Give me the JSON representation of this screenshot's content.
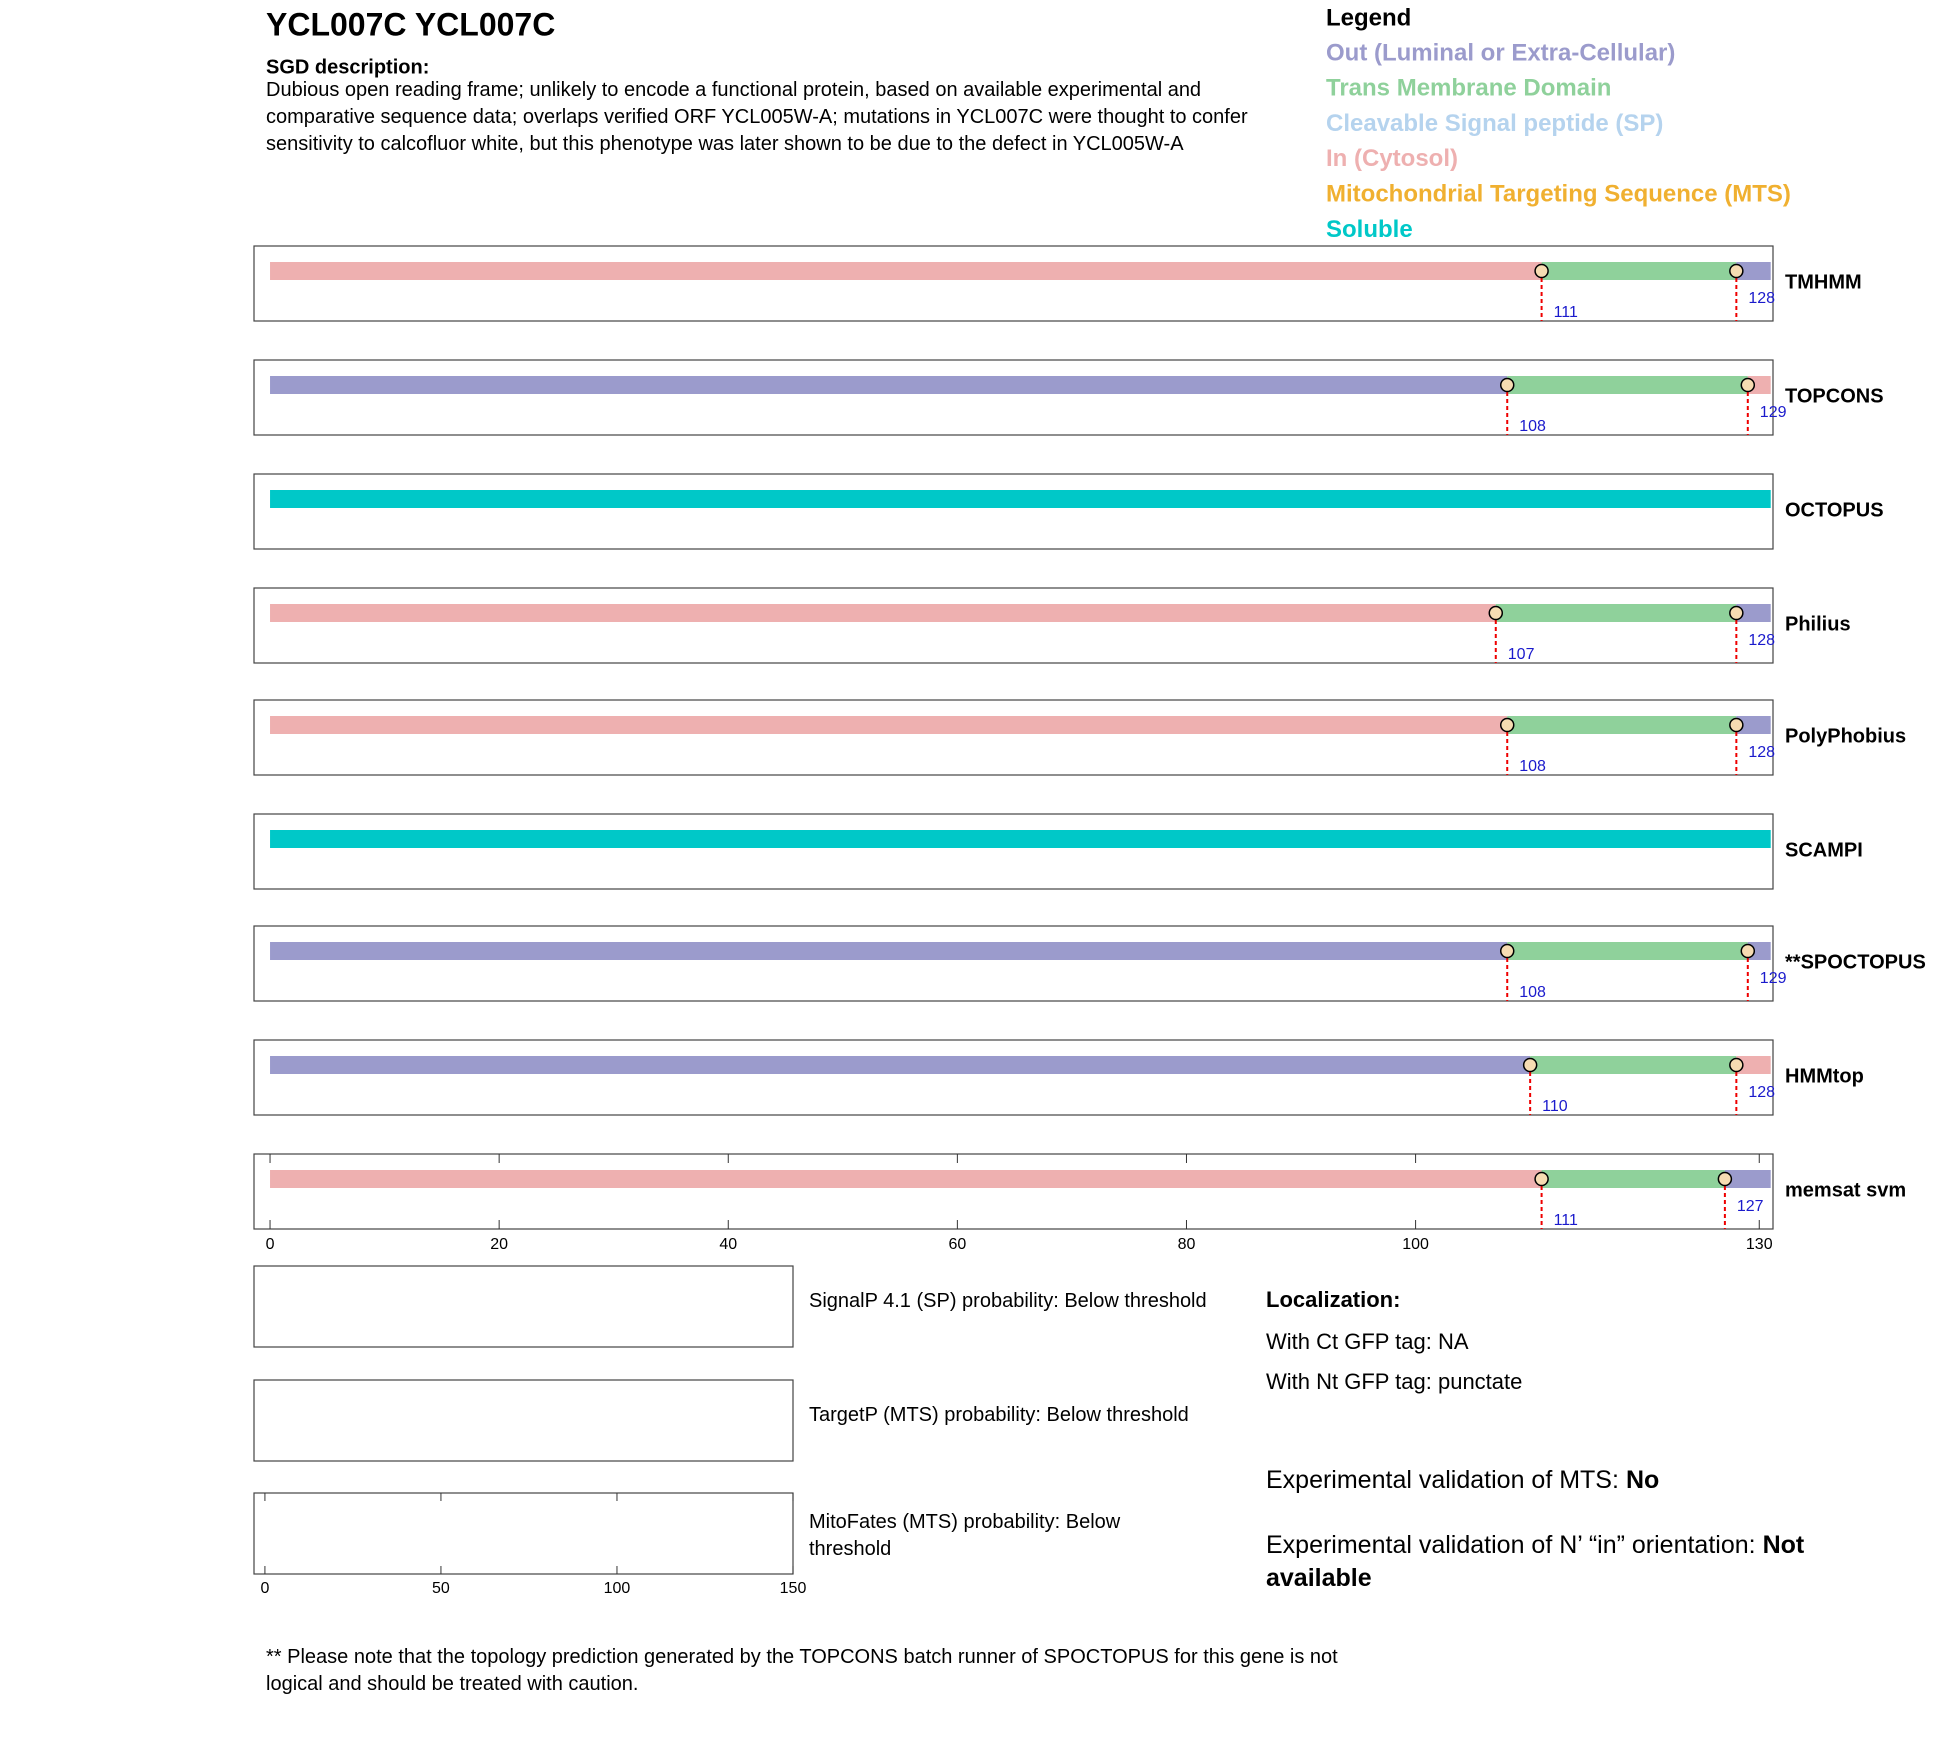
{
  "header": {
    "title": "YCL007C  YCL007C",
    "description_label": "SGD description:",
    "description": "Dubious open reading frame; unlikely to encode a functional protein, based on available experimental and comparative sequence data; overlaps verified ORF YCL005W-A; mutations in YCL007C were thought to confer sensitivity to calcofluor white, but this phenotype was later shown to be due to the defect in YCL005W-A"
  },
  "legend": {
    "title": "Legend",
    "items": [
      {
        "name": "Out (Luminal or Extra-Cellular)",
        "color": "#9b9bcc"
      },
      {
        "name": "Trans Membrane Domain",
        "color": "#8fd19b"
      },
      {
        "name": "Cleavable Signal peptide (SP)",
        "color": "#b5d3ee"
      },
      {
        "name": "In (Cytosol)",
        "color": "#eeb0b0"
      },
      {
        "name": "Mitochondrial Targeting Sequence (MTS)",
        "color": "#f0b030"
      },
      {
        "name": "Soluble",
        "color": "#00c8c8"
      }
    ]
  },
  "topology": {
    "xlim": [
      -1.4,
      131.2
    ],
    "xticks": [
      0,
      20,
      40,
      60,
      80,
      100,
      130
    ],
    "tracks": [
      {
        "name": "TMHMM",
        "segments": [
          {
            "start": 0,
            "end": 111,
            "color": "#eeb0b0"
          },
          {
            "start": 111,
            "end": 128,
            "color": "#8fd19b"
          },
          {
            "start": 128,
            "end": 131,
            "color": "#9b9bcc"
          }
        ],
        "boundaries": [
          111,
          128
        ]
      },
      {
        "name": "TOPCONS",
        "segments": [
          {
            "start": 0,
            "end": 108,
            "color": "#9b9bcc"
          },
          {
            "start": 108,
            "end": 129,
            "color": "#8fd19b"
          },
          {
            "start": 129,
            "end": 131,
            "color": "#eeb0b0"
          }
        ],
        "boundaries": [
          108,
          129
        ]
      },
      {
        "name": "OCTOPUS",
        "segments": [
          {
            "start": 0,
            "end": 131,
            "color": "#00c8c8"
          }
        ],
        "boundaries": []
      },
      {
        "name": "Philius",
        "segments": [
          {
            "start": 0,
            "end": 107,
            "color": "#eeb0b0"
          },
          {
            "start": 107,
            "end": 128,
            "color": "#8fd19b"
          },
          {
            "start": 128,
            "end": 131,
            "color": "#9b9bcc"
          }
        ],
        "boundaries": [
          107,
          128
        ]
      },
      {
        "name": "PolyPhobius",
        "segments": [
          {
            "start": 0,
            "end": 108,
            "color": "#eeb0b0"
          },
          {
            "start": 108,
            "end": 128,
            "color": "#8fd19b"
          },
          {
            "start": 128,
            "end": 131,
            "color": "#9b9bcc"
          }
        ],
        "boundaries": [
          108,
          128
        ]
      },
      {
        "name": "SCAMPI",
        "segments": [
          {
            "start": 0,
            "end": 131,
            "color": "#00c8c8"
          }
        ],
        "boundaries": []
      },
      {
        "name": "**SPOCTOPUS",
        "segments": [
          {
            "start": 0,
            "end": 108,
            "color": "#9b9bcc"
          },
          {
            "start": 108,
            "end": 129,
            "color": "#8fd19b"
          },
          {
            "start": 129,
            "end": 131,
            "color": "#9b9bcc"
          }
        ],
        "boundaries": [
          108,
          129
        ]
      },
      {
        "name": "HMMtop",
        "segments": [
          {
            "start": 0,
            "end": 110,
            "color": "#9b9bcc"
          },
          {
            "start": 110,
            "end": 128,
            "color": "#8fd19b"
          },
          {
            "start": 128,
            "end": 131,
            "color": "#eeb0b0"
          }
        ],
        "boundaries": [
          110,
          128
        ]
      },
      {
        "name": "memsat svm",
        "segments": [
          {
            "start": 0,
            "end": 111,
            "color": "#eeb0b0"
          },
          {
            "start": 111,
            "end": 127,
            "color": "#8fd19b"
          },
          {
            "start": 127,
            "end": 131,
            "color": "#9b9bcc"
          }
        ],
        "boundaries": [
          111,
          127
        ]
      }
    ]
  },
  "probabilities": {
    "xlim": [
      -3.1,
      150
    ],
    "xticks": [
      0,
      50,
      100,
      150
    ],
    "panels": [
      "SignalP 4.1 (SP) probability: Below threshold",
      "TargetP (MTS) probability: Below threshold",
      "MitoFates (MTS) probability: Below threshold"
    ]
  },
  "localization": {
    "title": "Localization:",
    "ct": "With Ct GFP tag: NA",
    "nt": "With Nt GFP tag: punctate"
  },
  "validation": {
    "mts": {
      "label": "Experimental validation of MTS:",
      "value": "No"
    },
    "orientation": {
      "label": "Experimental validation of N’ “in” orientation:",
      "value": "Not available"
    }
  },
  "footnote": "** Please note that the topology prediction generated by the TOPCONS batch runner of SPOCTOPUS for this gene is not logical and should be treated with caution."
}
